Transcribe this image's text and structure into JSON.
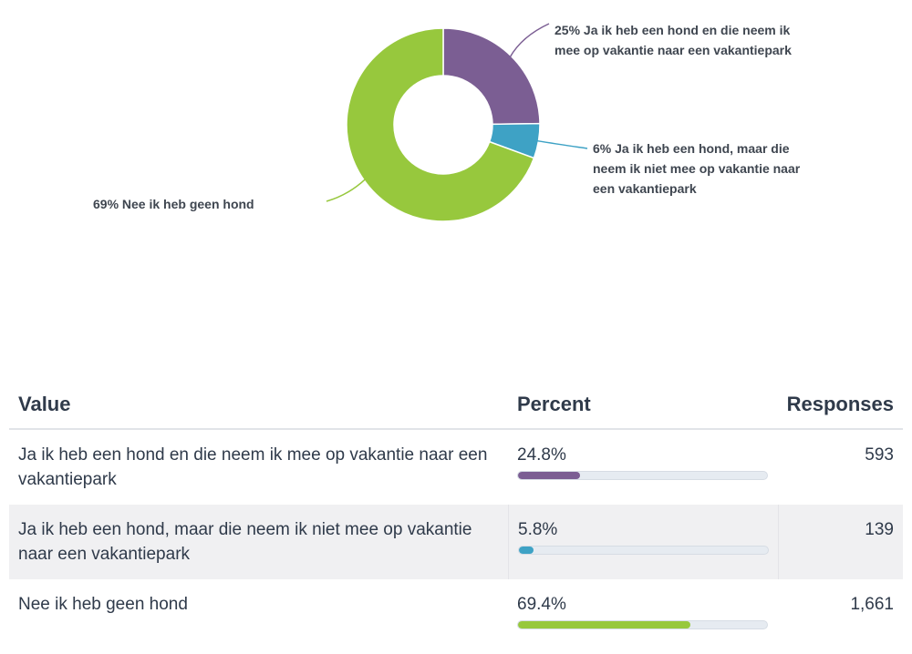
{
  "chart_data": {
    "type": "pie",
    "variant": "donut",
    "slices": [
      {
        "label": "Ja ik heb een hond en die neem ik mee op vakantie naar een vakantiepark",
        "percent_label": "25%",
        "value": 24.8,
        "color": "#7b5e93"
      },
      {
        "label": "Ja ik heb een hond, maar die neem ik niet mee op vakantie naar een vakantiepark",
        "percent_label": "6%",
        "value": 5.8,
        "color": "#3ea2c5"
      },
      {
        "label": "Nee ik heb geen hond",
        "percent_label": "69%",
        "value": 69.4,
        "color": "#97c83d"
      }
    ]
  },
  "labels": {
    "slice0": "25% Ja ik heb een hond en die neem ik mee op vakantie naar een vakantiepark",
    "slice1": "6% Ja ik heb een hond, maar die neem ik niet mee op vakantie naar een vakantiepark",
    "slice2": "69% Nee ik heb geen hond"
  },
  "table": {
    "headers": {
      "value": "Value",
      "percent": "Percent",
      "responses": "Responses"
    },
    "rows": [
      {
        "value": "Ja ik heb een hond en die neem ik mee op vakantie naar een vakantiepark",
        "percent": "24.8%",
        "fraction": 0.248,
        "responses": "593",
        "color": "#7b5e93"
      },
      {
        "value": "Ja ik heb een hond, maar die neem ik niet mee op vakantie naar een vakantiepark",
        "percent": "5.8%",
        "fraction": 0.058,
        "responses": "139",
        "color": "#3ea2c5"
      },
      {
        "value": "Nee ik heb geen hond",
        "percent": "69.4%",
        "fraction": 0.694,
        "responses": "1,661",
        "color": "#97c83d"
      }
    ]
  }
}
